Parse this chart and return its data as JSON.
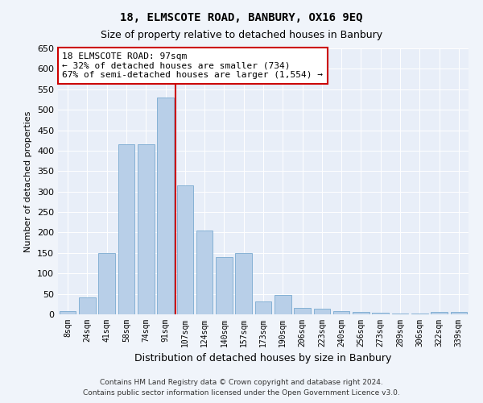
{
  "title": "18, ELMSCOTE ROAD, BANBURY, OX16 9EQ",
  "subtitle": "Size of property relative to detached houses in Banbury",
  "xlabel": "Distribution of detached houses by size in Banbury",
  "ylabel": "Number of detached properties",
  "categories": [
    "8sqm",
    "24sqm",
    "41sqm",
    "58sqm",
    "74sqm",
    "91sqm",
    "107sqm",
    "124sqm",
    "140sqm",
    "157sqm",
    "173sqm",
    "190sqm",
    "206sqm",
    "223sqm",
    "240sqm",
    "256sqm",
    "273sqm",
    "289sqm",
    "306sqm",
    "322sqm",
    "339sqm"
  ],
  "values": [
    8,
    42,
    150,
    415,
    415,
    530,
    315,
    205,
    140,
    150,
    32,
    48,
    15,
    14,
    8,
    5,
    3,
    2,
    2,
    5,
    5
  ],
  "bar_color": "#b8cfe8",
  "bar_edgecolor": "#7aaad0",
  "vline_x_index": 5,
  "vline_color": "#cc0000",
  "annotation_text": "18 ELMSCOTE ROAD: 97sqm\n← 32% of detached houses are smaller (734)\n67% of semi-detached houses are larger (1,554) →",
  "annotation_box_color": "#ffffff",
  "annotation_box_edgecolor": "#cc0000",
  "ylim": [
    0,
    650
  ],
  "yticks": [
    0,
    50,
    100,
    150,
    200,
    250,
    300,
    350,
    400,
    450,
    500,
    550,
    600,
    650
  ],
  "footer1": "Contains HM Land Registry data © Crown copyright and database right 2024.",
  "footer2": "Contains public sector information licensed under the Open Government Licence v3.0.",
  "bg_color": "#f0f4fa",
  "plot_bg_color": "#e8eef8",
  "title_fontsize": 10,
  "subtitle_fontsize": 9
}
